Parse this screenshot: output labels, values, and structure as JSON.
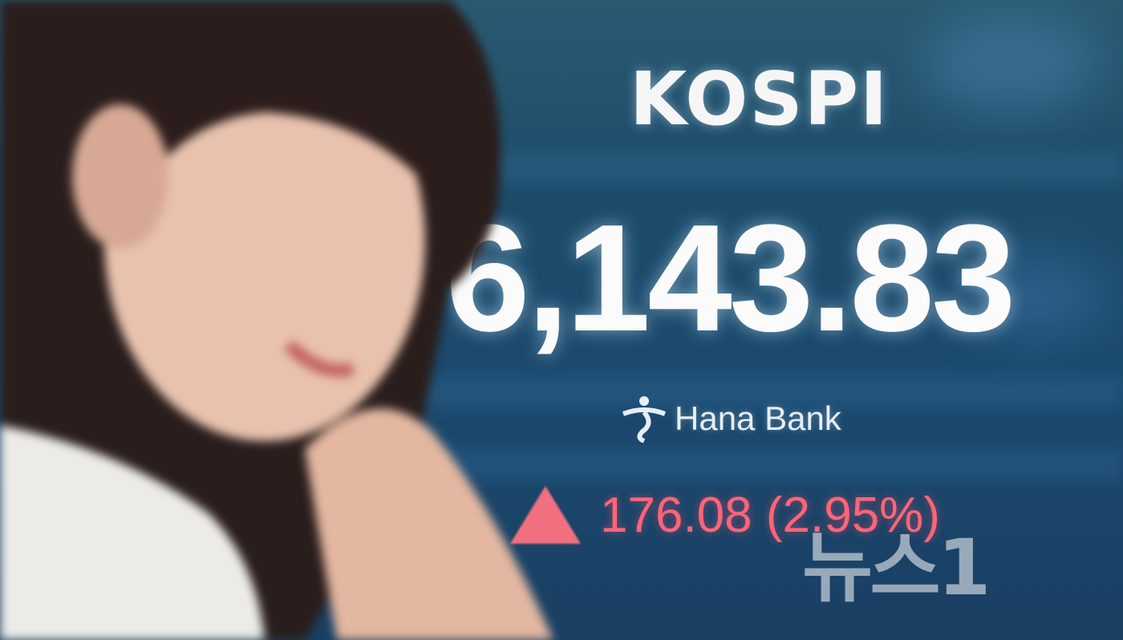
{
  "board": {
    "index_name": "KOSPI",
    "index_value": "6,143.83",
    "sponsor": "Hana Bank",
    "change_direction": "up",
    "change_text": "176.08 (2.95%)",
    "up_color": "#ff6478"
  },
  "watermark": {
    "text": "뉴스1"
  },
  "colors": {
    "background": "#1d4c6a",
    "text": "#fbfbfb"
  }
}
